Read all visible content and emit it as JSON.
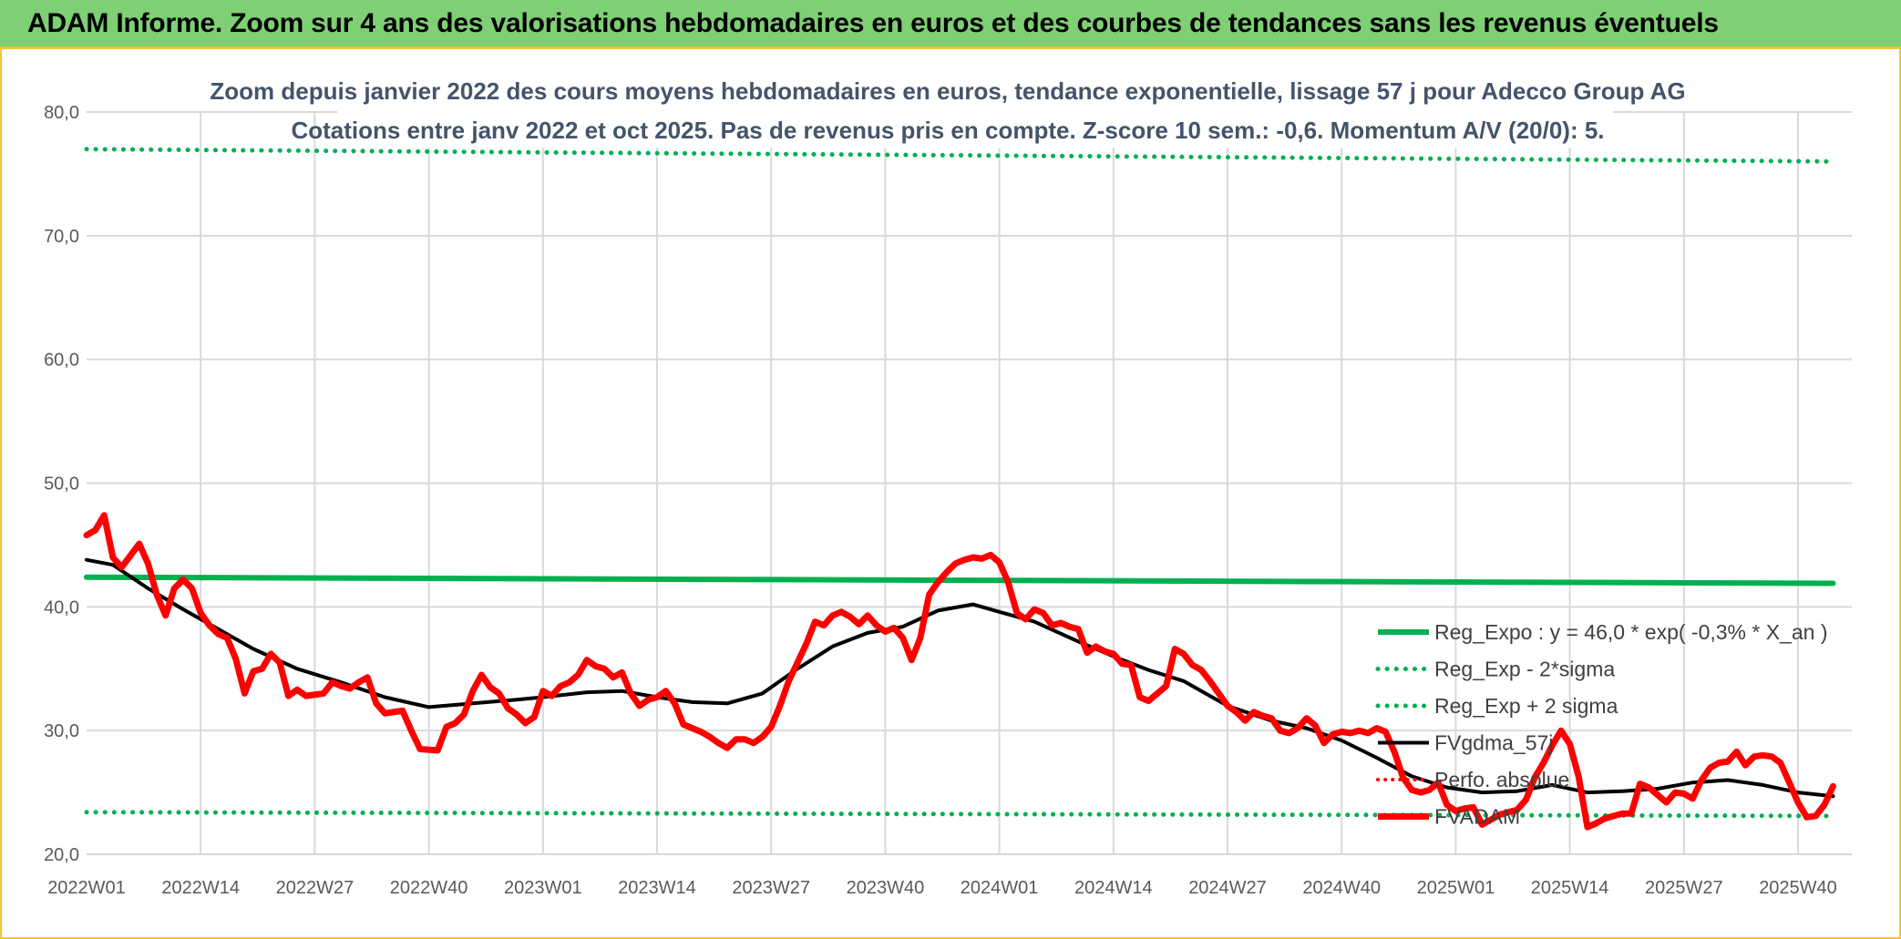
{
  "banner": {
    "title": "ADAM Informe. Zoom sur 4 ans des valorisations hebdomadaires en euros et des courbes de tendances sans les revenus éventuels"
  },
  "colors": {
    "banner_bg": "#7fcf74",
    "accent": "#f2c33a",
    "reg_expo": "#00b050",
    "price": "#ff0000",
    "smooth": "#000000",
    "grid": "#d9d9d9",
    "axis_text": "#595959",
    "title_text": "#44546a"
  },
  "chart_data": {
    "type": "line",
    "title_line1": "Zoom depuis janvier 2022 des cours moyens hebdomadaires en euros, tendance exponentielle, lissage 57 j pour Adecco Group AG",
    "title_line2": "Cotations entre janv 2022 et oct 2025. Pas de revenus pris en compte. Z-score 10 sem.: -0,6. Momentum A/V (20/0): 5.",
    "xlabel": "",
    "ylabel": "",
    "ylim": [
      20,
      80
    ],
    "y_ticks": [
      "20,0",
      "30,0",
      "40,0",
      "50,0",
      "60,0",
      "70,0",
      "80,0"
    ],
    "x_ticks": [
      "2022W01",
      "2022W14",
      "2022W27",
      "2022W40",
      "2023W01",
      "2023W14",
      "2023W27",
      "2023W40",
      "2024W01",
      "2024W14",
      "2024W27",
      "2024W40",
      "2025W01",
      "2025W14",
      "2025W27",
      "2025W40"
    ],
    "grid": true,
    "legend_position": "bottom-right",
    "series": [
      {
        "name": "Reg_Expo : y = 46,0 * exp( -0,3% *  X_an )",
        "style": "solid-thick",
        "color": "#00b050",
        "points": [
          [
            "2022W01",
            42.4
          ],
          [
            "2025W44",
            41.9
          ]
        ]
      },
      {
        "name": "Reg_Exp - 2*sigma",
        "style": "dotted",
        "color": "#00b050",
        "points": [
          [
            "2022W01",
            23.4
          ],
          [
            "2025W44",
            23.1
          ]
        ]
      },
      {
        "name": "Reg_Exp + 2 sigma",
        "style": "dotted",
        "color": "#00b050",
        "points": [
          [
            "2022W01",
            77.0
          ],
          [
            "2025W44",
            76.0
          ]
        ]
      },
      {
        "name": "FVgdma_57j",
        "style": "solid",
        "color": "#000000",
        "points": [
          [
            "2022W01",
            43.8
          ],
          [
            "2022W04",
            43.4
          ],
          [
            "2022W08",
            41.5
          ],
          [
            "2022W12",
            39.8
          ],
          [
            "2022W16",
            38.2
          ],
          [
            "2022W20",
            36.6
          ],
          [
            "2022W25",
            35.0
          ],
          [
            "2022W30",
            33.9
          ],
          [
            "2022W35",
            32.7
          ],
          [
            "2022W40",
            31.9
          ],
          [
            "2022W45",
            32.2
          ],
          [
            "2022W50",
            32.5
          ],
          [
            "2023W01",
            32.7
          ],
          [
            "2023W06",
            33.1
          ],
          [
            "2023W10",
            33.2
          ],
          [
            "2023W14",
            32.7
          ],
          [
            "2023W18",
            32.3
          ],
          [
            "2023W22",
            32.2
          ],
          [
            "2023W26",
            33.0
          ],
          [
            "2023W30",
            35.0
          ],
          [
            "2023W34",
            36.8
          ],
          [
            "2023W38",
            37.9
          ],
          [
            "2023W42",
            38.4
          ],
          [
            "2023W46",
            39.7
          ],
          [
            "2023W50",
            40.2
          ],
          [
            "2024W01",
            39.6
          ],
          [
            "2024W05",
            38.8
          ],
          [
            "2024W10",
            37.2
          ],
          [
            "2024W14",
            36.0
          ],
          [
            "2024W18",
            34.9
          ],
          [
            "2024W22",
            34.0
          ],
          [
            "2024W27",
            32.0
          ],
          [
            "2024W32",
            30.8
          ],
          [
            "2024W36",
            30.2
          ],
          [
            "2024W40",
            29.2
          ],
          [
            "2024W44",
            27.8
          ],
          [
            "2024W48",
            26.3
          ],
          [
            "2024W52",
            25.4
          ],
          [
            "2025W04",
            25.0
          ],
          [
            "2025W08",
            25.1
          ],
          [
            "2025W12",
            25.6
          ],
          [
            "2025W16",
            25.0
          ],
          [
            "2025W20",
            25.1
          ],
          [
            "2025W24",
            25.3
          ],
          [
            "2025W28",
            25.8
          ],
          [
            "2025W32",
            26.0
          ],
          [
            "2025W36",
            25.6
          ],
          [
            "2025W40",
            25.0
          ],
          [
            "2025W44",
            24.7
          ]
        ]
      },
      {
        "name": "Perfo. absolue",
        "style": "dotted",
        "color": "#ff0000",
        "points": []
      },
      {
        "name": "FVADAM",
        "style": "solid-thick",
        "color": "#ff0000",
        "points": [
          [
            "2022W01",
            45.8
          ],
          [
            "2022W02",
            46.2
          ],
          [
            "2022W03",
            47.4
          ],
          [
            "2022W04",
            44.0
          ],
          [
            "2022W05",
            43.2
          ],
          [
            "2022W07",
            45.1
          ],
          [
            "2022W08",
            43.5
          ],
          [
            "2022W09",
            41.0
          ],
          [
            "2022W10",
            39.3
          ],
          [
            "2022W11",
            41.5
          ],
          [
            "2022W12",
            42.2
          ],
          [
            "2022W13",
            41.5
          ],
          [
            "2022W14",
            39.5
          ],
          [
            "2022W15",
            38.5
          ],
          [
            "2022W16",
            37.8
          ],
          [
            "2022W17",
            37.5
          ],
          [
            "2022W18",
            35.8
          ],
          [
            "2022W19",
            33.0
          ],
          [
            "2022W20",
            34.8
          ],
          [
            "2022W21",
            35.0
          ],
          [
            "2022W22",
            36.2
          ],
          [
            "2022W23",
            35.5
          ],
          [
            "2022W24",
            32.8
          ],
          [
            "2022W25",
            33.3
          ],
          [
            "2022W26",
            32.8
          ],
          [
            "2022W28",
            33.0
          ],
          [
            "2022W29",
            33.9
          ],
          [
            "2022W30",
            33.6
          ],
          [
            "2022W31",
            33.4
          ],
          [
            "2022W32",
            33.9
          ],
          [
            "2022W33",
            34.3
          ],
          [
            "2022W34",
            32.2
          ],
          [
            "2022W35",
            31.4
          ],
          [
            "2022W37",
            31.6
          ],
          [
            "2022W38",
            30.0
          ],
          [
            "2022W39",
            28.5
          ],
          [
            "2022W41",
            28.4
          ],
          [
            "2022W42",
            30.3
          ],
          [
            "2022W43",
            30.6
          ],
          [
            "2022W44",
            31.3
          ],
          [
            "2022W45",
            33.2
          ],
          [
            "2022W46",
            34.5
          ],
          [
            "2022W47",
            33.5
          ],
          [
            "2022W48",
            33.0
          ],
          [
            "2022W49",
            31.8
          ],
          [
            "2022W50",
            31.3
          ],
          [
            "2022W51",
            30.6
          ],
          [
            "2022W52",
            31.1
          ],
          [
            "2023W01",
            33.2
          ],
          [
            "2023W02",
            32.8
          ],
          [
            "2023W03",
            33.6
          ],
          [
            "2023W04",
            33.9
          ],
          [
            "2023W05",
            34.5
          ],
          [
            "2023W06",
            35.7
          ],
          [
            "2023W07",
            35.2
          ],
          [
            "2023W08",
            35.0
          ],
          [
            "2023W09",
            34.3
          ],
          [
            "2023W10",
            34.7
          ],
          [
            "2023W11",
            33.0
          ],
          [
            "2023W12",
            32.0
          ],
          [
            "2023W13",
            32.5
          ],
          [
            "2023W14",
            32.7
          ],
          [
            "2023W15",
            33.2
          ],
          [
            "2023W16",
            32.2
          ],
          [
            "2023W17",
            30.5
          ],
          [
            "2023W18",
            30.2
          ],
          [
            "2023W19",
            29.9
          ],
          [
            "2023W20",
            29.5
          ],
          [
            "2023W21",
            29.0
          ],
          [
            "2023W22",
            28.6
          ],
          [
            "2023W23",
            29.3
          ],
          [
            "2023W24",
            29.3
          ],
          [
            "2023W25",
            29.0
          ],
          [
            "2023W26",
            29.5
          ],
          [
            "2023W27",
            30.3
          ],
          [
            "2023W28",
            32.0
          ],
          [
            "2023W29",
            34.0
          ],
          [
            "2023W30",
            35.5
          ],
          [
            "2023W31",
            37.0
          ],
          [
            "2023W32",
            38.8
          ],
          [
            "2023W33",
            38.5
          ],
          [
            "2023W34",
            39.3
          ],
          [
            "2023W35",
            39.6
          ],
          [
            "2023W36",
            39.2
          ],
          [
            "2023W37",
            38.6
          ],
          [
            "2023W38",
            39.3
          ],
          [
            "2023W39",
            38.5
          ],
          [
            "2023W40",
            38.0
          ],
          [
            "2023W41",
            38.3
          ],
          [
            "2023W42",
            37.5
          ],
          [
            "2023W43",
            35.7
          ],
          [
            "2023W44",
            37.5
          ],
          [
            "2023W45",
            41.0
          ],
          [
            "2023W46",
            42.0
          ],
          [
            "2023W47",
            42.8
          ],
          [
            "2023W48",
            43.5
          ],
          [
            "2023W49",
            43.8
          ],
          [
            "2023W50",
            44.0
          ],
          [
            "2023W51",
            43.9
          ],
          [
            "2023W52",
            44.2
          ],
          [
            "2024W01",
            43.6
          ],
          [
            "2024W02",
            42.0
          ],
          [
            "2024W03",
            39.5
          ],
          [
            "2024W04",
            39.0
          ],
          [
            "2024W05",
            39.8
          ],
          [
            "2024W06",
            39.5
          ],
          [
            "2024W07",
            38.5
          ],
          [
            "2024W08",
            38.7
          ],
          [
            "2024W09",
            38.4
          ],
          [
            "2024W10",
            38.2
          ],
          [
            "2024W11",
            36.3
          ],
          [
            "2024W12",
            36.8
          ],
          [
            "2024W13",
            36.4
          ],
          [
            "2024W14",
            36.2
          ],
          [
            "2024W15",
            35.4
          ],
          [
            "2024W16",
            35.3
          ],
          [
            "2024W17",
            32.7
          ],
          [
            "2024W18",
            32.4
          ],
          [
            "2024W19",
            33.0
          ],
          [
            "2024W20",
            33.6
          ],
          [
            "2024W21",
            36.6
          ],
          [
            "2024W22",
            36.2
          ],
          [
            "2024W23",
            35.3
          ],
          [
            "2024W24",
            34.9
          ],
          [
            "2024W25",
            34.0
          ],
          [
            "2024W26",
            33.0
          ],
          [
            "2024W27",
            32.0
          ],
          [
            "2024W28",
            31.5
          ],
          [
            "2024W29",
            30.8
          ],
          [
            "2024W30",
            31.5
          ],
          [
            "2024W31",
            31.2
          ],
          [
            "2024W32",
            31.0
          ],
          [
            "2024W33",
            30.0
          ],
          [
            "2024W34",
            29.8
          ],
          [
            "2024W35",
            30.2
          ],
          [
            "2024W36",
            31.0
          ],
          [
            "2024W37",
            30.4
          ],
          [
            "2024W38",
            29.0
          ],
          [
            "2024W39",
            29.7
          ],
          [
            "2024W40",
            29.9
          ],
          [
            "2024W41",
            29.8
          ],
          [
            "2024W42",
            30.0
          ],
          [
            "2024W43",
            29.8
          ],
          [
            "2024W44",
            30.2
          ],
          [
            "2024W45",
            29.9
          ],
          [
            "2024W46",
            28.3
          ],
          [
            "2024W47",
            26.2
          ],
          [
            "2024W48",
            25.2
          ],
          [
            "2024W49",
            25.0
          ],
          [
            "2024W50",
            25.2
          ],
          [
            "2024W51",
            25.8
          ],
          [
            "2024W52",
            24.0
          ],
          [
            "2025W01",
            23.5
          ],
          [
            "2025W02",
            23.7
          ],
          [
            "2025W03",
            23.8
          ],
          [
            "2025W04",
            22.4
          ],
          [
            "2025W05",
            22.8
          ],
          [
            "2025W06",
            23.2
          ],
          [
            "2025W07",
            23.4
          ],
          [
            "2025W08",
            23.6
          ],
          [
            "2025W09",
            24.4
          ],
          [
            "2025W10",
            26.2
          ],
          [
            "2025W11",
            27.4
          ],
          [
            "2025W12",
            28.8
          ],
          [
            "2025W13",
            30.0
          ],
          [
            "2025W14",
            28.9
          ],
          [
            "2025W15",
            26.3
          ],
          [
            "2025W16",
            22.2
          ],
          [
            "2025W17",
            22.5
          ],
          [
            "2025W18",
            22.9
          ],
          [
            "2025W19",
            23.1
          ],
          [
            "2025W20",
            23.3
          ],
          [
            "2025W21",
            23.3
          ],
          [
            "2025W22",
            25.7
          ],
          [
            "2025W23",
            25.4
          ],
          [
            "2025W24",
            24.8
          ],
          [
            "2025W25",
            24.2
          ],
          [
            "2025W26",
            25.0
          ],
          [
            "2025W27",
            24.9
          ],
          [
            "2025W28",
            24.5
          ],
          [
            "2025W29",
            26.0
          ],
          [
            "2025W30",
            27.0
          ],
          [
            "2025W31",
            27.4
          ],
          [
            "2025W32",
            27.5
          ],
          [
            "2025W33",
            28.3
          ],
          [
            "2025W34",
            27.2
          ],
          [
            "2025W35",
            27.9
          ],
          [
            "2025W36",
            28.0
          ],
          [
            "2025W37",
            27.9
          ],
          [
            "2025W38",
            27.4
          ],
          [
            "2025W39",
            25.8
          ],
          [
            "2025W40",
            24.2
          ],
          [
            "2025W41",
            23.0
          ],
          [
            "2025W42",
            23.1
          ],
          [
            "2025W43",
            24.0
          ],
          [
            "2025W44",
            25.5
          ]
        ]
      }
    ]
  }
}
